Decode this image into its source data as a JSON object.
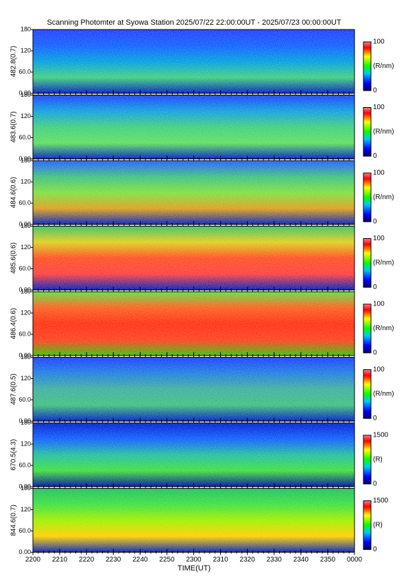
{
  "chart_data": {
    "type": "heatmap",
    "title": "Scanning Photomter at Syowa Station  2025/07/22 22:00:00UT - 2025/07/23 00:00:00UT",
    "xlabel": "TIME(UT)",
    "xlim": [
      0,
      120
    ],
    "xticks": [
      {
        "value": 0,
        "label": "2200"
      },
      {
        "value": 10,
        "label": "2210"
      },
      {
        "value": 20,
        "label": "2220"
      },
      {
        "value": 30,
        "label": "2230"
      },
      {
        "value": 40,
        "label": "2240"
      },
      {
        "value": 50,
        "label": "2250"
      },
      {
        "value": 60,
        "label": "2300"
      },
      {
        "value": 70,
        "label": "2310"
      },
      {
        "value": 80,
        "label": "2320"
      },
      {
        "value": 90,
        "label": "2330"
      },
      {
        "value": 100,
        "label": "2340"
      },
      {
        "value": 110,
        "label": "2350"
      },
      {
        "value": 120,
        "label": "0000"
      }
    ],
    "panels": [
      {
        "ylabel": "482.8(0.7)",
        "ylim": [
          0,
          180
        ],
        "yticks": [
          {
            "value": 0,
            "label": "0.00"
          },
          {
            "value": 60,
            "label": "60.0"
          },
          120,
          180
        ],
        "clim": [
          0,
          100
        ],
        "cticks": [
          0,
          100
        ],
        "clabel": "(R/nm)"
      },
      {
        "ylabel": "483.6(0.7)",
        "ylim": [
          0,
          180
        ],
        "yticks": [
          {
            "value": 0,
            "label": "0.00"
          },
          {
            "value": 60,
            "label": "60.0"
          },
          120,
          180
        ],
        "clim": [
          0,
          100
        ],
        "cticks": [
          0,
          100
        ],
        "clabel": "(R/nm)"
      },
      {
        "ylabel": "484.6(0.6)",
        "ylim": [
          0,
          180
        ],
        "yticks": [
          {
            "value": 0,
            "label": "0.00"
          },
          {
            "value": 60,
            "label": "60.0"
          },
          120,
          180
        ],
        "clim": [
          0,
          100
        ],
        "cticks": [
          0,
          100
        ],
        "clabel": "(R/nm)"
      },
      {
        "ylabel": "485.6(0.6)",
        "ylim": [
          0,
          180
        ],
        "yticks": [
          {
            "value": 0,
            "label": "0.00"
          },
          {
            "value": 60,
            "label": "60.0"
          },
          120,
          180
        ],
        "clim": [
          0,
          100
        ],
        "cticks": [
          0,
          100
        ],
        "clabel": "(R/nm)"
      },
      {
        "ylabel": "486.4(0.6)",
        "ylim": [
          0,
          180
        ],
        "yticks": [
          {
            "value": 0,
            "label": "0.00"
          },
          {
            "value": 60,
            "label": "60.0"
          },
          120,
          180
        ],
        "clim": [
          0,
          100
        ],
        "cticks": [
          0,
          100
        ],
        "clabel": "(R/nm)"
      },
      {
        "ylabel": "487.6(0.5)",
        "ylim": [
          0,
          180
        ],
        "yticks": [
          {
            "value": 0,
            "label": "0.00"
          },
          {
            "value": 60,
            "label": "60.0"
          },
          120,
          180
        ],
        "clim": [
          0,
          100
        ],
        "cticks": [
          0,
          100
        ],
        "clabel": "(R/nm)"
      },
      {
        "ylabel": "670.5(4.3)",
        "ylim": [
          0,
          180
        ],
        "yticks": [
          {
            "value": 0,
            "label": "0.00"
          },
          {
            "value": 60,
            "label": "60.0"
          },
          120,
          180
        ],
        "clim": [
          0,
          1500
        ],
        "cticks": [
          0,
          1500
        ],
        "clabel": "(R)"
      },
      {
        "ylabel": "844.6(0.7)",
        "ylim": [
          0,
          180
        ],
        "yticks": [
          {
            "value": 0,
            "label": "0.00"
          },
          {
            "value": 60,
            "label": "60.0"
          },
          120,
          180
        ],
        "clim": [
          0,
          1500
        ],
        "cticks": [
          0,
          1500
        ],
        "clabel": "(R)"
      }
    ]
  }
}
